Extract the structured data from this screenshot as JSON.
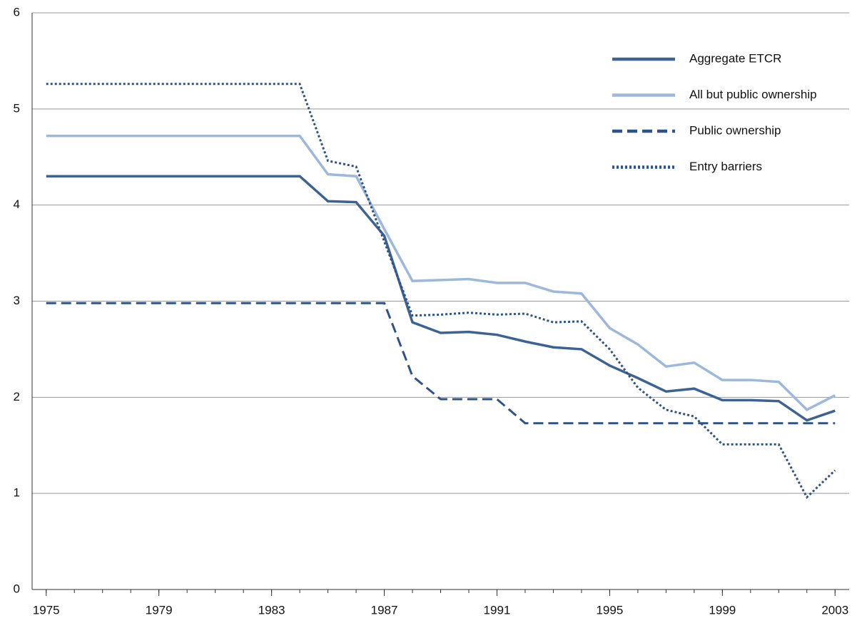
{
  "chart_data": {
    "type": "line",
    "x": [
      1975,
      1976,
      1977,
      1978,
      1979,
      1980,
      1981,
      1982,
      1983,
      1984,
      1985,
      1986,
      1987,
      1988,
      1989,
      1990,
      1991,
      1992,
      1993,
      1994,
      1995,
      1996,
      1997,
      1998,
      1999,
      2000,
      2001,
      2002,
      2003
    ],
    "series": [
      {
        "name": "Aggregate ETCR",
        "color": "#3d6392",
        "dash": "solid",
        "values": [
          4.3,
          4.3,
          4.3,
          4.3,
          4.3,
          4.3,
          4.3,
          4.3,
          4.3,
          4.3,
          4.04,
          4.03,
          3.68,
          2.78,
          2.67,
          2.68,
          2.65,
          2.58,
          2.52,
          2.5,
          2.33,
          2.2,
          2.06,
          2.09,
          1.97,
          1.97,
          1.96,
          1.76,
          1.86
        ]
      },
      {
        "name": "All but public ownership",
        "color": "#9db8d8",
        "dash": "solid",
        "values": [
          4.72,
          4.72,
          4.72,
          4.72,
          4.72,
          4.72,
          4.72,
          4.72,
          4.72,
          4.72,
          4.32,
          4.3,
          3.75,
          3.21,
          3.22,
          3.23,
          3.19,
          3.19,
          3.1,
          3.08,
          2.72,
          2.55,
          2.32,
          2.36,
          2.18,
          2.18,
          2.16,
          1.87,
          2.02
        ]
      },
      {
        "name": "Public ownership",
        "color": "#2d5387",
        "dash": "dashed",
        "values": [
          2.98,
          2.98,
          2.98,
          2.98,
          2.98,
          2.98,
          2.98,
          2.98,
          2.98,
          2.98,
          2.98,
          2.98,
          2.98,
          2.22,
          1.98,
          1.98,
          1.98,
          1.73,
          1.73,
          1.73,
          1.73,
          1.73,
          1.73,
          1.73,
          1.73,
          1.73,
          1.73,
          1.73,
          1.73
        ]
      },
      {
        "name": "Entry barriers",
        "color": "#2d5387",
        "dash": "dotted",
        "values": [
          5.26,
          5.26,
          5.26,
          5.26,
          5.26,
          5.26,
          5.26,
          5.26,
          5.26,
          5.26,
          4.46,
          4.4,
          3.62,
          2.85,
          2.86,
          2.88,
          2.86,
          2.87,
          2.78,
          2.79,
          2.5,
          2.1,
          1.87,
          1.8,
          1.51,
          1.51,
          1.51,
          0.96,
          1.24
        ]
      }
    ],
    "xlim": [
      1974.5,
      2003.5
    ],
    "xticks": [
      1975,
      1979,
      1983,
      1987,
      1991,
      1995,
      1999,
      2003
    ],
    "ylim": [
      0,
      6
    ],
    "yticks": [
      0,
      1,
      2,
      3,
      4,
      5,
      6
    ],
    "grid": true,
    "legend": "upper right"
  }
}
